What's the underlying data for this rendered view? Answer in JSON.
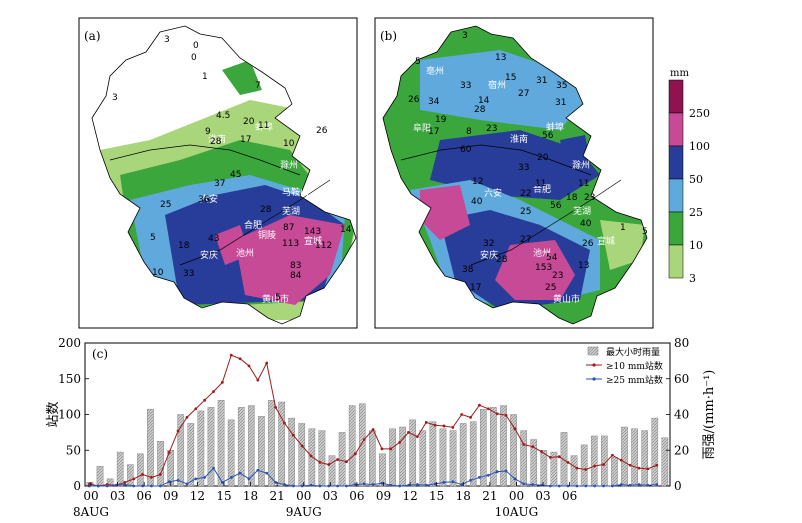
{
  "panels": {
    "a": {
      "label": "(a)"
    },
    "b": {
      "label": "(b)"
    },
    "c": {
      "label": "(c)"
    }
  },
  "map_a": {
    "place_names": [
      "淮北",
      "宿州",
      "亳州",
      "阜阳",
      "蚌埠",
      "淮南",
      "合肥",
      "滁州",
      "六安",
      "芜湖",
      "宣城",
      "池州",
      "铜陵",
      "安庆",
      "黄山市",
      "马鞍山"
    ],
    "numbers": [
      "0",
      "1",
      "3",
      "7",
      "4.5",
      "20",
      "9",
      "28",
      "17",
      "10",
      "26",
      "11",
      "45",
      "37",
      "36",
      "25",
      "18",
      "5",
      "10",
      "33",
      "43",
      "28",
      "83",
      "84",
      "113",
      "87",
      "112",
      "143",
      "14",
      "5",
      "3",
      "0"
    ]
  },
  "map_b": {
    "place_names": [
      "宿州",
      "亳州",
      "阜阳",
      "蚌埠",
      "淮南",
      "合肥",
      "滁州",
      "六安",
      "芜湖",
      "安庆",
      "池州",
      "黄山市",
      "宣城"
    ],
    "numbers": [
      "3",
      "13",
      "5",
      "31",
      "15",
      "33",
      "14",
      "27",
      "35",
      "26",
      "34",
      "31",
      "28",
      "8",
      "23",
      "17",
      "19",
      "60",
      "56",
      "20",
      "40",
      "11",
      "22",
      "12",
      "56",
      "23",
      "11",
      "26",
      "33",
      "25",
      "27",
      "32",
      "28",
      "38",
      "17",
      "13",
      "153",
      "54",
      "23",
      "25",
      "40",
      "1",
      "5",
      "18"
    ]
  },
  "colorbar": {
    "unit": "mm",
    "tick_labels": [
      "250",
      "100",
      "50",
      "25",
      "10",
      "3"
    ],
    "colors": [
      "#8e1350",
      "#c74a97",
      "#283c9a",
      "#5fa9dc",
      "#3aa63c",
      "#a9d67a"
    ]
  },
  "chart_data": {
    "type": "bar",
    "title": "",
    "ylabel_left": "站数",
    "ylabel_right": "雨强/(mm·h⁻¹)",
    "xlabel": "",
    "ylim_left": [
      0,
      200
    ],
    "ylim_right": [
      0,
      80
    ],
    "yticks_left": [
      "0",
      "50",
      "100",
      "150",
      "200"
    ],
    "yticks_right": [
      "0",
      "20",
      "40",
      "60",
      "80"
    ],
    "xtick_labels": [
      "00",
      "03",
      "06",
      "09",
      "12",
      "15",
      "18",
      "21",
      "00",
      "03",
      "06",
      "09",
      "12",
      "15",
      "18",
      "21",
      "00",
      "03",
      "06"
    ],
    "date_labels": [
      {
        "hour_index": 0,
        "text": "8AUG"
      },
      {
        "hour_index": 24,
        "text": "9AUG"
      },
      {
        "hour_index": 48,
        "text": "10AUG"
      }
    ],
    "legend_position": "top-right",
    "series": [
      {
        "name": "最大小时雨量",
        "axis": "right",
        "kind": "bar",
        "color": "#b8b8b8",
        "values": [
          2,
          11,
          4,
          19,
          12,
          18,
          43,
          25,
          20,
          40,
          35,
          42,
          44,
          48,
          37,
          44,
          45,
          39,
          48,
          47,
          38,
          35,
          32,
          31,
          17,
          30,
          45,
          46,
          31,
          18,
          32,
          33,
          37,
          31,
          36,
          32,
          31,
          35,
          36,
          43,
          44,
          45,
          40,
          31,
          26,
          20,
          19,
          30,
          17,
          23,
          28,
          28,
          16,
          33,
          32,
          31,
          38,
          27
        ]
      },
      {
        "name": "≥10 mm站数",
        "axis": "left",
        "kind": "line",
        "color": "#a11b1b",
        "values": [
          3,
          0,
          2,
          1,
          5,
          10,
          16,
          12,
          16,
          47,
          77,
          96,
          108,
          120,
          132,
          145,
          183,
          178,
          168,
          148,
          172,
          110,
          88,
          71,
          56,
          42,
          33,
          30,
          37,
          34,
          45,
          65,
          79,
          52,
          52,
          61,
          75,
          69,
          89,
          85,
          84,
          82,
          100,
          96,
          113,
          108,
          101,
          99,
          80,
          58,
          55,
          48,
          40,
          41,
          33,
          25,
          23,
          28,
          30,
          43,
          36,
          29,
          25,
          24,
          29
        ]
      },
      {
        "name": "≥25 mm站数",
        "axis": "left",
        "kind": "line",
        "color": "#2b52b5",
        "values": [
          0,
          0,
          0,
          1,
          2,
          0,
          0,
          0,
          0,
          6,
          8,
          3,
          10,
          12,
          25,
          5,
          12,
          18,
          10,
          22,
          18,
          5,
          2,
          0,
          0,
          1,
          0,
          0,
          0,
          0,
          2,
          3,
          2,
          4,
          1,
          0,
          1,
          2,
          1,
          3,
          5,
          6,
          2,
          8,
          12,
          15,
          20,
          21,
          10,
          3,
          2,
          1,
          0,
          0,
          0,
          0,
          0,
          0,
          0,
          0,
          2,
          1,
          2,
          1,
          2
        ]
      }
    ]
  }
}
